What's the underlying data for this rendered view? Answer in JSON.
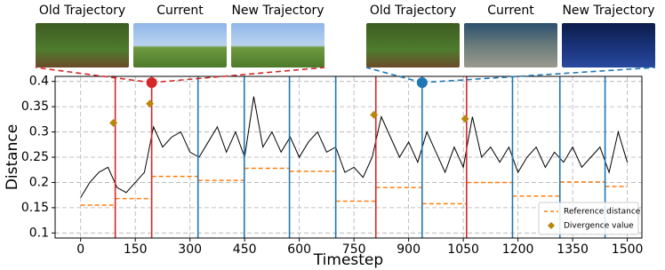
{
  "chart_data": {
    "type": "line",
    "xlabel": "Timestep",
    "ylabel": "Distance",
    "xlim": [
      -70,
      1540
    ],
    "ylim": [
      0.09,
      0.41
    ],
    "xticks": [
      0,
      150,
      300,
      450,
      600,
      750,
      900,
      1050,
      1200,
      1350,
      1500
    ],
    "yticks": [
      0.1,
      0.15,
      0.2,
      0.25,
      0.3,
      0.35,
      0.4
    ],
    "grid": true,
    "legend": "lower right",
    "x": [
      0,
      25,
      50,
      75,
      100,
      125,
      150,
      175,
      200,
      225,
      250,
      275,
      300,
      325,
      350,
      375,
      400,
      425,
      450,
      475,
      500,
      525,
      550,
      575,
      600,
      625,
      650,
      675,
      700,
      725,
      750,
      775,
      800,
      825,
      850,
      875,
      900,
      925,
      950,
      975,
      1000,
      1025,
      1050,
      1075,
      1100,
      1125,
      1150,
      1175,
      1200,
      1225,
      1250,
      1275,
      1300,
      1325,
      1350,
      1375,
      1400,
      1425,
      1450,
      1475,
      1500
    ],
    "series": [
      {
        "color": "#000000",
        "values": [
          0.17,
          0.2,
          0.22,
          0.23,
          0.19,
          0.18,
          0.2,
          0.22,
          0.31,
          0.27,
          0.29,
          0.3,
          0.26,
          0.25,
          0.28,
          0.31,
          0.26,
          0.3,
          0.25,
          0.37,
          0.27,
          0.3,
          0.26,
          0.29,
          0.25,
          0.28,
          0.3,
          0.26,
          0.27,
          0.22,
          0.23,
          0.21,
          0.25,
          0.33,
          0.29,
          0.25,
          0.28,
          0.24,
          0.3,
          0.26,
          0.22,
          0.27,
          0.23,
          0.33,
          0.25,
          0.27,
          0.24,
          0.27,
          0.22,
          0.25,
          0.27,
          0.23,
          0.26,
          0.24,
          0.27,
          0.23,
          0.25,
          0.27,
          0.22,
          0.3,
          0.24
        ]
      }
    ],
    "reference": {
      "name": "Reference distance",
      "color": "#ff7f0e",
      "segments": [
        {
          "x": [
            0,
            95
          ],
          "value": 0.155
        },
        {
          "x": [
            95,
            195
          ],
          "value": 0.168
        },
        {
          "x": [
            195,
            322
          ],
          "value": 0.212
        },
        {
          "x": [
            322,
            449
          ],
          "value": 0.204
        },
        {
          "x": [
            449,
            573
          ],
          "value": 0.228
        },
        {
          "x": [
            573,
            700
          ],
          "value": 0.222
        },
        {
          "x": [
            700,
            810
          ],
          "value": 0.163
        },
        {
          "x": [
            810,
            937
          ],
          "value": 0.19
        },
        {
          "x": [
            937,
            1059
          ],
          "value": 0.158
        },
        {
          "x": [
            1059,
            1185
          ],
          "value": 0.2
        },
        {
          "x": [
            1185,
            1315
          ],
          "value": 0.173
        },
        {
          "x": [
            1315,
            1439
          ],
          "value": 0.201
        },
        {
          "x": [
            1439,
            1500
          ],
          "value": 0.192
        }
      ]
    },
    "divergence": {
      "name": "Divergence value",
      "color": "#b8860b",
      "x": [
        90,
        190,
        805,
        1055
      ],
      "values": [
        0.318,
        0.356,
        0.334,
        0.326
      ]
    },
    "switches": [
      {
        "x": 95,
        "color": "#d62728"
      },
      {
        "x": 195,
        "color": "#d62728"
      },
      {
        "x": 810,
        "color": "#d62728"
      },
      {
        "x": 1059,
        "color": "#d62728"
      },
      {
        "x": 322,
        "color": "#1f77b4"
      },
      {
        "x": 449,
        "color": "#1f77b4"
      },
      {
        "x": 573,
        "color": "#1f77b4"
      },
      {
        "x": 700,
        "color": "#1f77b4"
      },
      {
        "x": 937,
        "color": "#1f77b4"
      },
      {
        "x": 1185,
        "color": "#1f77b4"
      },
      {
        "x": 1315,
        "color": "#1f77b4"
      },
      {
        "x": 1439,
        "color": "#1f77b4"
      }
    ],
    "highlights": [
      {
        "x": 195,
        "color": "#d62728",
        "panels": [
          "Old Trajectory",
          "Current",
          "New Trajectory"
        ]
      },
      {
        "x": 937,
        "color": "#1f77b4",
        "panels": [
          "Old Trajectory",
          "Current",
          "New Trajectory"
        ]
      }
    ]
  }
}
